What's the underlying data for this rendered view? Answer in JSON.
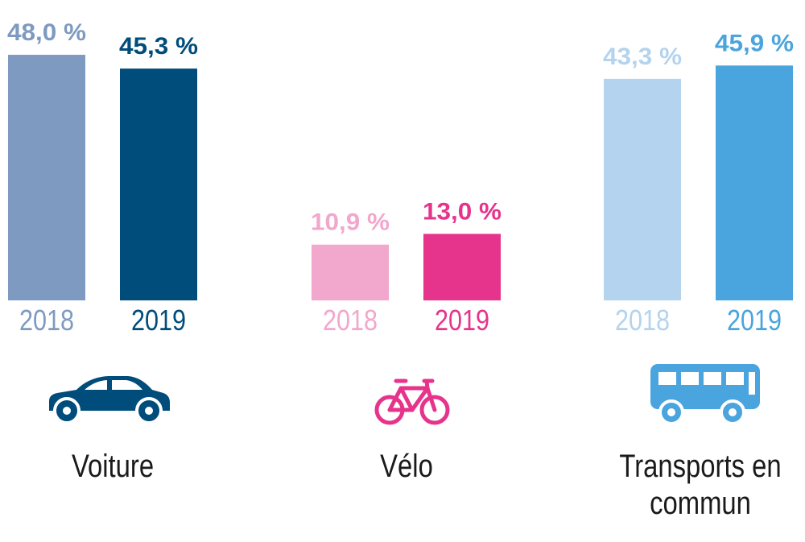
{
  "chart_data": {
    "type": "bar",
    "groups": [
      {
        "name": "Voiture",
        "icon": "car-icon",
        "bars": [
          {
            "year": "2018",
            "value": 48.0,
            "label": "48,0 %",
            "color": "#7f9ac0"
          },
          {
            "year": "2019",
            "value": 45.3,
            "label": "45,3 %",
            "color": "#004c7a"
          }
        ]
      },
      {
        "name": "Vélo",
        "icon": "bicycle-icon",
        "bars": [
          {
            "year": "2018",
            "value": 10.9,
            "label": "10,9 %",
            "color": "#f2a7cc"
          },
          {
            "year": "2019",
            "value": 13.0,
            "label": "13,0 %",
            "color": "#e6338b"
          }
        ]
      },
      {
        "name": "Transports en commun",
        "icon": "bus-icon",
        "bars": [
          {
            "year": "2018",
            "value": 43.3,
            "label": "43,3 %",
            "color": "#b3d3ee"
          },
          {
            "year": "2019",
            "value": 45.9,
            "label": "45,9 %",
            "color": "#4aa4dd"
          }
        ]
      }
    ],
    "ylim": [
      0,
      50
    ],
    "grid": false
  },
  "labels": {
    "voiture": "Voiture",
    "velo": "Vélo",
    "transports": "Transports en commun"
  }
}
